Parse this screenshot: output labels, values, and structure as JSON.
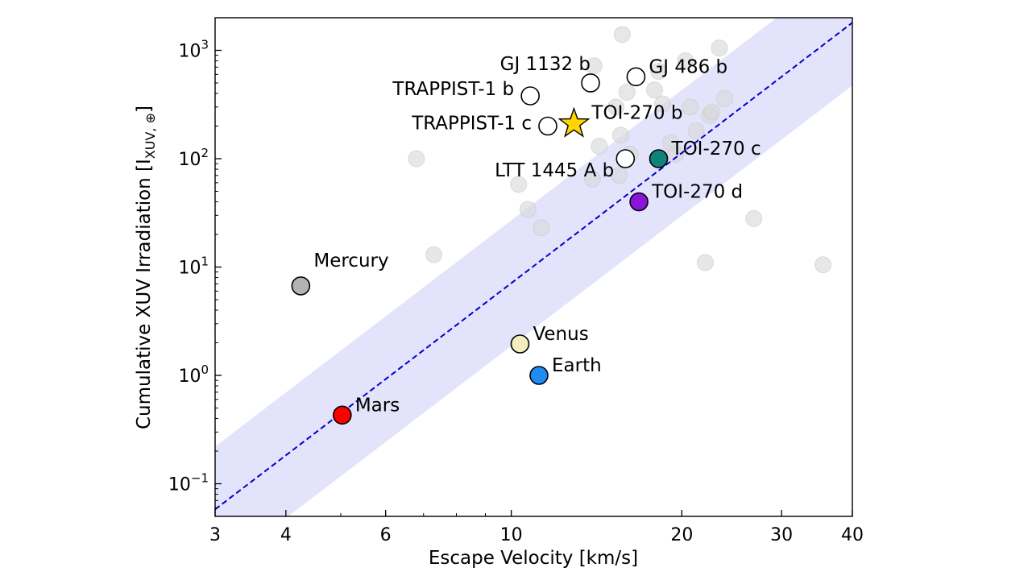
{
  "chart_data": {
    "type": "scatter",
    "xlabel": "Escape Velocity [km/s]",
    "ylabel": "Cumulative XUV Irradiation [I",
    "ylabel_sub": "XUV, ⊕",
    "ylabel_close": "]",
    "xscale": "log",
    "yscale": "log",
    "xlim": [
      3,
      40
    ],
    "ylim": [
      0.05,
      2000
    ],
    "grid": false,
    "x_ticks": [
      {
        "value": 3,
        "label": "3"
      },
      {
        "value": 4,
        "label": "4"
      },
      {
        "value": 6,
        "label": "6"
      },
      {
        "value": 10,
        "label": "10"
      },
      {
        "value": 20,
        "label": "20"
      },
      {
        "value": 30,
        "label": "30"
      },
      {
        "value": 40,
        "label": "40"
      }
    ],
    "y_ticks": [
      {
        "value": 0.1,
        "base": "10",
        "exp": "−1"
      },
      {
        "value": 1,
        "base": "10",
        "exp": "0"
      },
      {
        "value": 10,
        "base": "10",
        "exp": "1"
      },
      {
        "value": 100,
        "base": "10",
        "exp": "2"
      },
      {
        "value": 1000,
        "base": "10",
        "exp": "3"
      }
    ],
    "trend": {
      "style": "dashed",
      "color": "#0000cc",
      "x": [
        3,
        40
      ],
      "y": [
        0.058,
        1800
      ],
      "band_factor": 3.8,
      "band_color": "#e3e4fb"
    },
    "background_points": {
      "color": "#d9d9d9",
      "x": [
        6.8,
        7.3,
        10.3,
        10.7,
        11.3,
        13.9,
        14.0,
        14.3,
        15.3,
        15.5,
        15.6,
        15.7,
        16.0,
        16.2,
        17.9,
        18.2,
        18.5,
        19.1,
        19.5,
        20.3,
        20.7,
        21.2,
        22.0,
        22.4,
        22.6,
        23.3,
        23.8,
        26.8,
        35.5
      ],
      "y": [
        100,
        13,
        58,
        34,
        23,
        65,
        720,
        130,
        300,
        70,
        165,
        1400,
        410,
        110,
        430,
        640,
        320,
        140,
        110,
        800,
        300,
        180,
        11,
        250,
        270,
        1050,
        360,
        28,
        10.5
      ]
    },
    "named_points": [
      {
        "name": "Mercury",
        "x": 4.25,
        "y": 6.7,
        "color": "#b3b3b3",
        "label_dx": 16,
        "label_dy": -32,
        "anchor": "start"
      },
      {
        "name": "Mars",
        "x": 5.03,
        "y": 0.43,
        "color": "#ff0000",
        "label_dx": 16,
        "label_dy": -13,
        "anchor": "start"
      },
      {
        "name": "Venus",
        "x": 10.36,
        "y": 1.95,
        "color": "#f2ecbe",
        "label_dx": 16,
        "label_dy": -13,
        "anchor": "start"
      },
      {
        "name": "Earth",
        "x": 11.19,
        "y": 1.0,
        "color": "#1e8cf0",
        "label_dx": 16,
        "label_dy": -13,
        "anchor": "start"
      },
      {
        "name": "TRAPPIST-1 b",
        "x": 10.8,
        "y": 380,
        "color": "#ffffff",
        "label_dx": -20,
        "label_dy": -9,
        "anchor": "end"
      },
      {
        "name": "TRAPPIST-1 c",
        "x": 11.6,
        "y": 200,
        "color": "#ffffff",
        "label_dx": -20,
        "label_dy": -4,
        "anchor": "end"
      },
      {
        "name": "GJ 1132 b",
        "x": 13.8,
        "y": 500,
        "color": "#ffffff",
        "label_dx": 0,
        "label_dy": -24,
        "anchor": "end"
      },
      {
        "name": "GJ 486 b",
        "x": 16.6,
        "y": 570,
        "color": "#ffffff",
        "label_dx": 16,
        "label_dy": -13,
        "anchor": "start"
      },
      {
        "name": "LTT 1445 A b",
        "x": 15.9,
        "y": 100,
        "color": "#ffffff",
        "label_dx": -14,
        "label_dy": 14,
        "anchor": "end"
      },
      {
        "name": "TOI-270 c",
        "x": 18.2,
        "y": 100,
        "color": "#11827c",
        "label_dx": 16,
        "label_dy": -13,
        "anchor": "start"
      },
      {
        "name": "TOI-270 d",
        "x": 16.8,
        "y": 40,
        "color": "#8a15d9",
        "label_dx": 16,
        "label_dy": -13,
        "anchor": "start"
      }
    ],
    "highlight": {
      "name": "TOI-270 b",
      "x": 12.9,
      "y": 210,
      "marker": "star",
      "color": "#ffd400",
      "label_dx": 22,
      "label_dy": -14,
      "anchor": "start"
    }
  }
}
